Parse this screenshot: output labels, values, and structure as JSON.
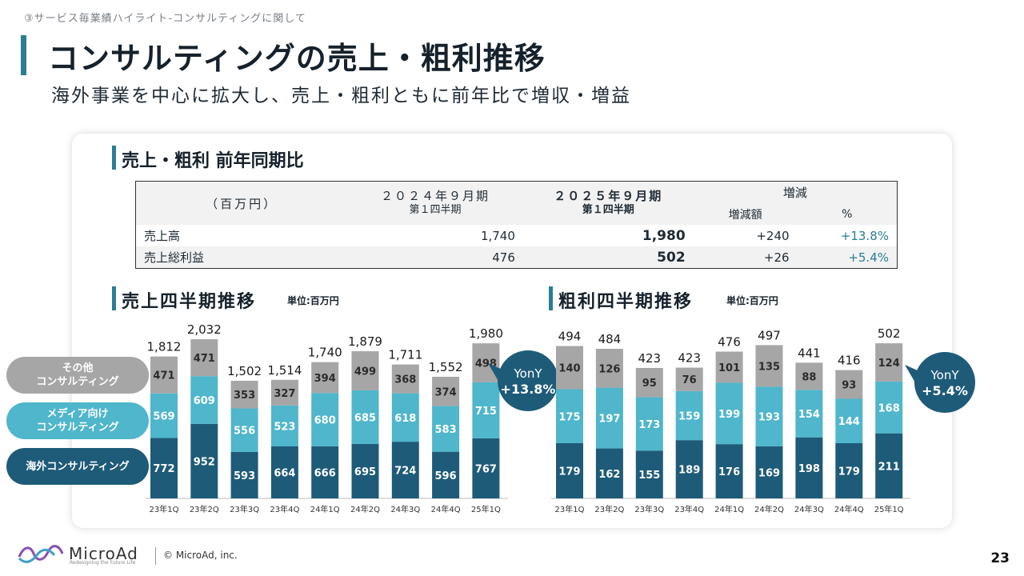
{
  "header": {
    "breadcrumb": "③サービス毎業績ハイライト-コンサルティングに関して",
    "title": "コンサルティングの売上・粗利推移",
    "subtitle": "海外事業を中心に拡大し、売上・粗利ともに前年比で増収・増益"
  },
  "yoy_table": {
    "section_title": "売上・粗利 前年同期比",
    "unit_header": "（百万円）",
    "col_prev": "２０２４年９月期",
    "col_prev_sub": "第１四半期",
    "col_curr": "２０２５年９月期",
    "col_curr_sub": "第１四半期",
    "col_change": "増減",
    "col_change_amount": "増減額",
    "col_change_pct": "%",
    "rows": [
      {
        "label": "売上高",
        "prev": "1,740",
        "curr": "1,980",
        "diff": "+240",
        "pct": "+13.8%"
      },
      {
        "label": "売上総利益",
        "prev": "476",
        "curr": "502",
        "diff": "+26",
        "pct": "+5.4%"
      }
    ]
  },
  "legend": {
    "other": "その他\nコンサルティング",
    "media": "メディア向け\nコンサルティング",
    "overseas": "海外コンサルティング"
  },
  "colors": {
    "overseas": "#1e5b78",
    "media": "#4fb6cc",
    "other": "#a6a6a6",
    "accent": "#2a7d94",
    "badge": "#1e5b78"
  },
  "chart_data": [
    {
      "type": "bar",
      "stacked": true,
      "title": "売上四半期推移",
      "unit": "単位:百万円",
      "categories": [
        "23年1Q",
        "23年2Q",
        "23年3Q",
        "23年4Q",
        "24年1Q",
        "24年2Q",
        "24年3Q",
        "24年4Q",
        "25年1Q"
      ],
      "series": [
        {
          "name": "海外コンサルティング",
          "values": [
            772,
            952,
            593,
            664,
            666,
            695,
            724,
            596,
            767
          ]
        },
        {
          "name": "メディア向けコンサルティング",
          "values": [
            569,
            609,
            556,
            523,
            680,
            685,
            618,
            583,
            715
          ]
        },
        {
          "name": "その他コンサルティング",
          "values": [
            471,
            471,
            353,
            327,
            394,
            499,
            368,
            374,
            498
          ]
        }
      ],
      "totals": [
        "1,812",
        "2,032",
        "1,502",
        "1,514",
        "1,740",
        "1,879",
        "1,711",
        "1,552",
        "1,980"
      ],
      "ylim": [
        0,
        2100
      ],
      "badge": {
        "line1": "YonY",
        "line2": "+13.8%"
      }
    },
    {
      "type": "bar",
      "stacked": true,
      "title": "粗利四半期推移",
      "unit": "単位:百万円",
      "categories": [
        "23年1Q",
        "23年2Q",
        "23年3Q",
        "23年4Q",
        "24年1Q",
        "24年2Q",
        "24年3Q",
        "24年4Q",
        "25年1Q"
      ],
      "series": [
        {
          "name": "海外コンサルティング",
          "values": [
            179,
            162,
            155,
            189,
            176,
            169,
            198,
            179,
            211
          ]
        },
        {
          "name": "メディア向けコンサルティング",
          "values": [
            175,
            197,
            173,
            159,
            199,
            193,
            154,
            144,
            168
          ]
        },
        {
          "name": "その他コンサルティング",
          "values": [
            140,
            126,
            95,
            76,
            101,
            135,
            88,
            93,
            124
          ]
        }
      ],
      "totals": [
        "494",
        "484",
        "423",
        "423",
        "476",
        "497",
        "441",
        "416",
        "502"
      ],
      "ylim": [
        0,
        520
      ],
      "badge": {
        "line1": "YonY",
        "line2": "+5.4%"
      }
    }
  ],
  "footer": {
    "logo": "MicroAd",
    "tagline": "Redesigning the Future Life",
    "copyright": "© MicroAd, inc.",
    "page": "23"
  }
}
